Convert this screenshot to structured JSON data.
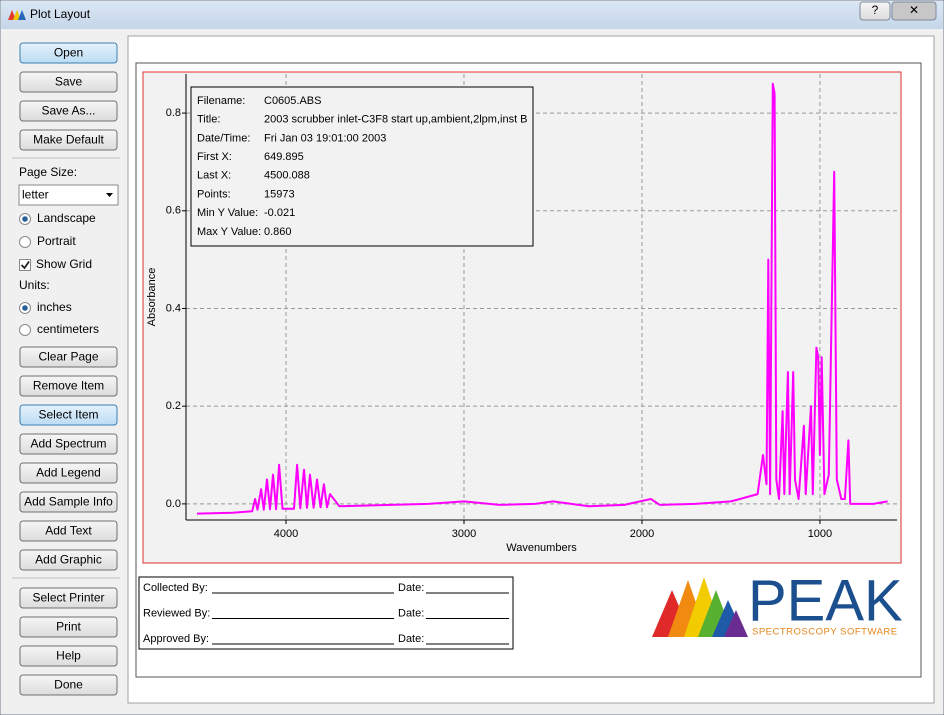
{
  "window": {
    "title": "Plot Layout",
    "help_button": "?"
  },
  "sidebar": {
    "buttons_top": [
      "Open",
      "Save",
      "Save As...",
      "Make Default"
    ],
    "page_size_label": "Page Size:",
    "page_size": "letter",
    "orientation": [
      "Landscape",
      "Portrait"
    ],
    "show_grid": "Show Grid",
    "units_label": "Units:",
    "units": [
      "inches",
      "centimeters"
    ],
    "buttons_mid": [
      "Clear Page",
      "Remove Item",
      "Select Item",
      "Add Spectrum",
      "Add Legend",
      "Add Sample Info",
      "Add Text",
      "Add Graphic"
    ],
    "buttons_bottom": [
      "Select Printer",
      "Print",
      "Help",
      "Done"
    ]
  },
  "chart_data": {
    "type": "line",
    "x_label": "Wavenumbers",
    "y_label": "Absorbance",
    "x": [
      4500,
      4300,
      4190,
      4174,
      4160,
      4140,
      4125,
      4107,
      4090,
      4073,
      4056,
      4039,
      4020,
      3955,
      3938,
      3920,
      3899,
      3882,
      3865,
      3845,
      3826,
      3806,
      3787,
      3770,
      3753,
      3700,
      3200,
      3000,
      2800,
      2600,
      2500,
      2300,
      2100,
      1950,
      1900,
      1700,
      1500,
      1450,
      1350,
      1320,
      1300,
      1290,
      1280,
      1265,
      1255,
      1245,
      1230,
      1210,
      1200,
      1180,
      1170,
      1150,
      1140,
      1120,
      1090,
      1080,
      1050,
      1040,
      1020,
      1010,
      1000,
      990,
      975,
      950,
      920,
      905,
      880,
      860,
      840,
      830,
      780,
      700,
      620
    ],
    "values": [
      -0.02,
      -0.018,
      -0.015,
      0.01,
      -0.012,
      0.03,
      -0.012,
      0.05,
      -0.011,
      0.06,
      -0.011,
      0.08,
      -0.01,
      -0.01,
      0.08,
      -0.009,
      0.07,
      -0.008,
      0.06,
      -0.008,
      0.05,
      -0.007,
      0.04,
      -0.007,
      0.02,
      -0.005,
      0.0,
      0.005,
      -0.002,
      0.0,
      0.005,
      -0.005,
      -0.002,
      0.01,
      -0.002,
      0.0,
      0.005,
      0.01,
      0.02,
      0.1,
      0.04,
      0.5,
      0.02,
      0.86,
      0.84,
      0.05,
      0.01,
      0.19,
      0.02,
      0.27,
      0.02,
      0.27,
      0.05,
      0.01,
      0.16,
      0.02,
      0.2,
      0.02,
      0.32,
      0.3,
      0.1,
      0.3,
      0.02,
      0.06,
      0.68,
      0.05,
      0.01,
      0.01,
      0.13,
      0.0,
      0.0,
      0.0,
      0.005
    ],
    "color": "#ff00ff",
    "xlim": [
      4562,
      567
    ],
    "ylim": [
      -0.033,
      0.88
    ],
    "xticks": [
      4000,
      3000,
      2000,
      1000
    ],
    "yticks": [
      {
        "value": 0,
        "label": "0.0"
      },
      0.2,
      0.4,
      0.6,
      0.8
    ],
    "grid": true
  },
  "info_box": {
    "rows": [
      [
        "Filename:",
        "C0605.ABS"
      ],
      [
        "Title:",
        "2003 scrubber inlet-C3F8 start up,ambient,2lpm,inst B"
      ],
      [
        "Date/Time:",
        "Fri Jan 03 19:01:00 2003"
      ],
      [
        "First X:",
        "649.895"
      ],
      [
        "Last X:",
        "4500.088"
      ],
      [
        "Points:",
        "15973"
      ],
      [
        "Min Y Value:",
        "-0.021"
      ],
      [
        "Max Y Value:",
        "0.860"
      ]
    ]
  },
  "signature_box": {
    "rows": [
      [
        "Collected By:",
        "Date:"
      ],
      [
        "Reviewed By:",
        "Date:"
      ],
      [
        "Approved By:",
        "Date:"
      ]
    ]
  },
  "logo": {
    "name": "PEAK",
    "tagline": "SPECTROSCOPY SOFTWARE"
  }
}
